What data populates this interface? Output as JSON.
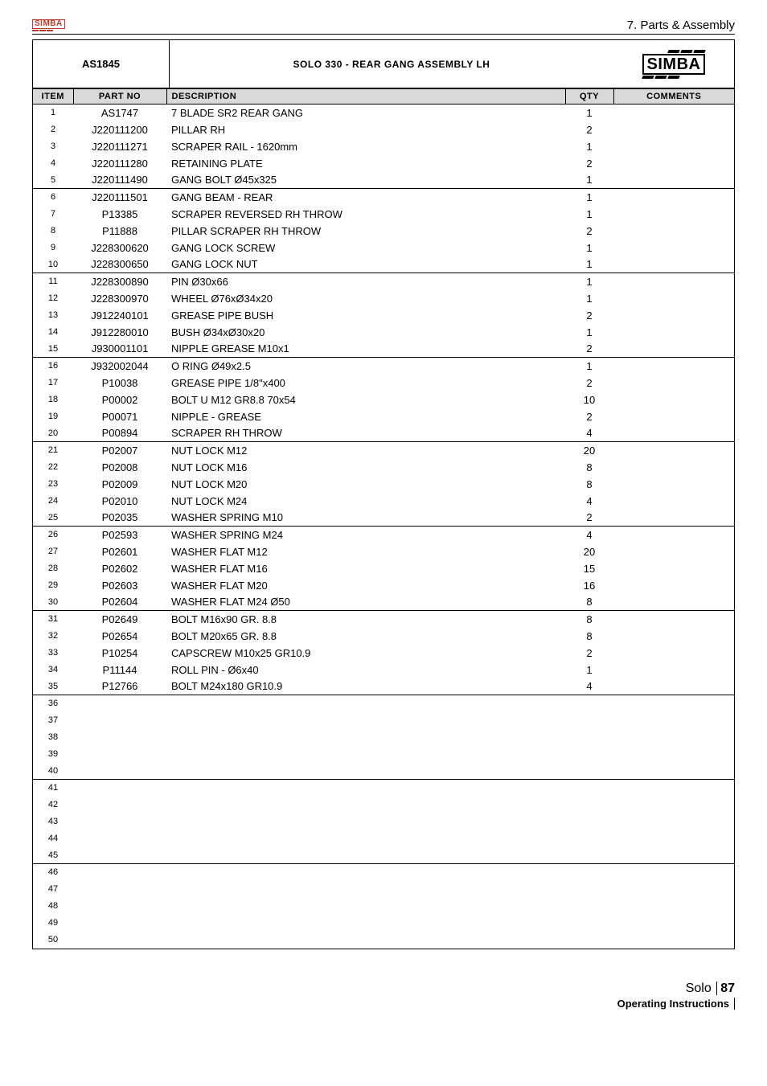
{
  "header": {
    "section_title": "7. Parts & Assembly",
    "drawing_no": "AS1845",
    "title": "SOLO 330 - REAR GANG ASSEMBLY LH",
    "brand": "SIMBA"
  },
  "columns": {
    "item": "ITEM",
    "partno": "PART NO",
    "desc": "DESCRIPTION",
    "qty": "QTY",
    "comm": "COMMENTS"
  },
  "rows": [
    {
      "i": "1",
      "p": "AS1747",
      "d": "7 BLADE SR2 REAR GANG",
      "q": "1",
      "end": false
    },
    {
      "i": "2",
      "p": "J220111200",
      "d": "PILLAR RH",
      "q": "2",
      "end": false
    },
    {
      "i": "3",
      "p": "J220111271",
      "d": "SCRAPER RAIL - 1620mm",
      "q": "1",
      "end": false
    },
    {
      "i": "4",
      "p": "J220111280",
      "d": "RETAINING PLATE",
      "q": "2",
      "end": false
    },
    {
      "i": "5",
      "p": "J220111490",
      "d": "GANG BOLT Ø45x325",
      "q": "1",
      "end": true
    },
    {
      "i": "6",
      "p": "J220111501",
      "d": "GANG BEAM - REAR",
      "q": "1",
      "end": false
    },
    {
      "i": "7",
      "p": "P13385",
      "d": "SCRAPER REVERSED RH THROW",
      "q": "1",
      "end": false
    },
    {
      "i": "8",
      "p": "P11888",
      "d": "PILLAR SCRAPER RH THROW",
      "q": "2",
      "end": false
    },
    {
      "i": "9",
      "p": "J228300620",
      "d": "GANG LOCK SCREW",
      "q": "1",
      "end": false
    },
    {
      "i": "10",
      "p": "J228300650",
      "d": "GANG LOCK NUT",
      "q": "1",
      "end": true
    },
    {
      "i": "11",
      "p": "J228300890",
      "d": "PIN Ø30x66",
      "q": "1",
      "end": false
    },
    {
      "i": "12",
      "p": "J228300970",
      "d": "WHEEL Ø76xØ34x20",
      "q": "1",
      "end": false
    },
    {
      "i": "13",
      "p": "J912240101",
      "d": "GREASE PIPE BUSH",
      "q": "2",
      "end": false
    },
    {
      "i": "14",
      "p": "J912280010",
      "d": "BUSH Ø34xØ30x20",
      "q": "1",
      "end": false
    },
    {
      "i": "15",
      "p": "J930001101",
      "d": "NIPPLE GREASE M10x1",
      "q": "2",
      "end": true
    },
    {
      "i": "16",
      "p": "J932002044",
      "d": "O RING Ø49x2.5",
      "q": "1",
      "end": false
    },
    {
      "i": "17",
      "p": "P10038",
      "d": "GREASE PIPE 1/8\"x400",
      "q": "2",
      "end": false
    },
    {
      "i": "18",
      "p": "P00002",
      "d": "BOLT U M12 GR8.8 70x54",
      "q": "10",
      "end": false
    },
    {
      "i": "19",
      "p": "P00071",
      "d": "NIPPLE - GREASE",
      "q": "2",
      "end": false
    },
    {
      "i": "20",
      "p": "P00894",
      "d": "SCRAPER RH THROW",
      "q": "4",
      "end": true
    },
    {
      "i": "21",
      "p": "P02007",
      "d": "NUT LOCK M12",
      "q": "20",
      "end": false
    },
    {
      "i": "22",
      "p": "P02008",
      "d": "NUT LOCK M16",
      "q": "8",
      "end": false
    },
    {
      "i": "23",
      "p": "P02009",
      "d": "NUT LOCK M20",
      "q": "8",
      "end": false
    },
    {
      "i": "24",
      "p": "P02010",
      "d": "NUT LOCK M24",
      "q": "4",
      "end": false
    },
    {
      "i": "25",
      "p": "P02035",
      "d": "WASHER SPRING M10",
      "q": "2",
      "end": true
    },
    {
      "i": "26",
      "p": "P02593",
      "d": "WASHER SPRING M24",
      "q": "4",
      "end": false
    },
    {
      "i": "27",
      "p": "P02601",
      "d": "WASHER FLAT M12",
      "q": "20",
      "end": false
    },
    {
      "i": "28",
      "p": "P02602",
      "d": "WASHER FLAT M16",
      "q": "15",
      "end": false
    },
    {
      "i": "29",
      "p": "P02603",
      "d": "WASHER FLAT M20",
      "q": "16",
      "end": false
    },
    {
      "i": "30",
      "p": "P02604",
      "d": "WASHER FLAT M24 Ø50",
      "q": "8",
      "end": true
    },
    {
      "i": "31",
      "p": "P02649",
      "d": "BOLT M16x90 GR. 8.8",
      "q": "8",
      "end": false
    },
    {
      "i": "32",
      "p": "P02654",
      "d": "BOLT M20x65 GR. 8.8",
      "q": "8",
      "end": false
    },
    {
      "i": "33",
      "p": "P10254",
      "d": "CAPSCREW M10x25 GR10.9",
      "q": "2",
      "end": false
    },
    {
      "i": "34",
      "p": "P11144",
      "d": "ROLL PIN - Ø6x40",
      "q": "1",
      "end": false
    },
    {
      "i": "35",
      "p": "P12766",
      "d": "BOLT M24x180 GR10.9",
      "q": "4",
      "end": true
    },
    {
      "i": "36",
      "p": "",
      "d": "",
      "q": "",
      "end": false
    },
    {
      "i": "37",
      "p": "",
      "d": "",
      "q": "",
      "end": false
    },
    {
      "i": "38",
      "p": "",
      "d": "",
      "q": "",
      "end": false
    },
    {
      "i": "39",
      "p": "",
      "d": "",
      "q": "",
      "end": false
    },
    {
      "i": "40",
      "p": "",
      "d": "",
      "q": "",
      "end": true
    },
    {
      "i": "41",
      "p": "",
      "d": "",
      "q": "",
      "end": false
    },
    {
      "i": "42",
      "p": "",
      "d": "",
      "q": "",
      "end": false
    },
    {
      "i": "43",
      "p": "",
      "d": "",
      "q": "",
      "end": false
    },
    {
      "i": "44",
      "p": "",
      "d": "",
      "q": "",
      "end": false
    },
    {
      "i": "45",
      "p": "",
      "d": "",
      "q": "",
      "end": true
    },
    {
      "i": "46",
      "p": "",
      "d": "",
      "q": "",
      "end": false
    },
    {
      "i": "47",
      "p": "",
      "d": "",
      "q": "",
      "end": false
    },
    {
      "i": "48",
      "p": "",
      "d": "",
      "q": "",
      "end": false
    },
    {
      "i": "49",
      "p": "",
      "d": "",
      "q": "",
      "end": false
    },
    {
      "i": "50",
      "p": "",
      "d": "",
      "q": "",
      "end": false
    }
  ],
  "footer": {
    "product": "Solo",
    "page": "87",
    "subtitle": "Operating Instructions"
  }
}
